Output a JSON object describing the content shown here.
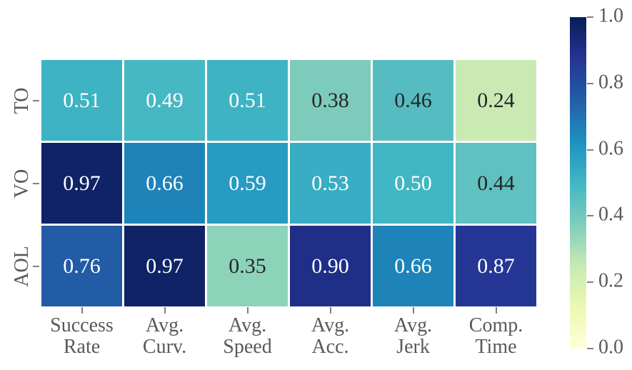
{
  "chart_data": {
    "type": "heatmap",
    "title": "",
    "xlabel": "",
    "ylabel": "",
    "rows": [
      "TO",
      "VO",
      "AOL"
    ],
    "columns": [
      "Success\nRate",
      "Avg.\nCurv.",
      "Avg.\nSpeed",
      "Avg.\nAcc.",
      "Avg.\nJerk",
      "Comp.\nTime"
    ],
    "values": [
      [
        0.51,
        0.49,
        0.51,
        0.38,
        0.46,
        0.24
      ],
      [
        0.97,
        0.66,
        0.59,
        0.53,
        0.5,
        0.44
      ],
      [
        0.76,
        0.97,
        0.35,
        0.9,
        0.66,
        0.87
      ]
    ],
    "value_decimals": 2,
    "vmin": 0.0,
    "vmax": 1.0,
    "grid": false,
    "legend": false,
    "colormap": {
      "name": "YlGnBu",
      "stops": [
        {
          "v": 0.0,
          "color": "#ffffd9"
        },
        {
          "v": 0.125,
          "color": "#edf8b1"
        },
        {
          "v": 0.25,
          "color": "#c7e9b4"
        },
        {
          "v": 0.375,
          "color": "#7fcdbb"
        },
        {
          "v": 0.5,
          "color": "#41b6c4"
        },
        {
          "v": 0.625,
          "color": "#1d91c0"
        },
        {
          "v": 0.75,
          "color": "#225ea8"
        },
        {
          "v": 0.875,
          "color": "#253494"
        },
        {
          "v": 1.0,
          "color": "#081d58"
        }
      ]
    },
    "colorbar": {
      "position": "right",
      "tick_labels": [
        "1.0",
        "0.8",
        "0.6",
        "0.4",
        "0.2",
        "0.0"
      ],
      "tick_values": [
        1.0,
        0.8,
        0.6,
        0.4,
        0.2,
        0.0
      ]
    },
    "colors": {
      "annot_dark": "#262626",
      "annot_light": "#ffffff",
      "tick_label": "#595959",
      "tick_mark": "#808080",
      "cell_gap": "#ffffff",
      "background": "#ffffff",
      "luminance_threshold": 0.408
    }
  }
}
